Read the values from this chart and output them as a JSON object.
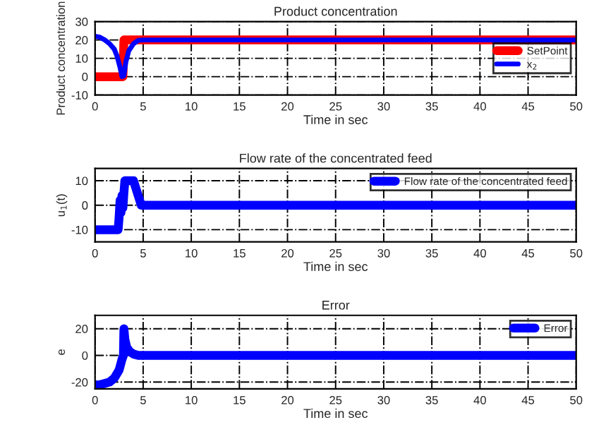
{
  "chart_data": [
    {
      "type": "line",
      "title": "Product concentration",
      "xlabel": "Time in sec",
      "ylabel": "Product concentration",
      "xlim": [
        0,
        50
      ],
      "xticks": [
        0,
        5,
        10,
        15,
        20,
        25,
        30,
        35,
        40,
        45,
        50
      ],
      "ylim": [
        -10,
        30
      ],
      "yticks": [
        -10,
        0,
        10,
        20,
        30
      ],
      "grid": true,
      "legend": "right",
      "line_style": "solid",
      "series": [
        {
          "name": "SetPoint",
          "color": "#ff0000",
          "x": [
            0,
            2.9,
            3.0,
            50
          ],
          "values": [
            0,
            0,
            20,
            20
          ]
        },
        {
          "name": "x$_{2}$",
          "color": "#0000ff",
          "x": [
            0,
            0.5,
            1,
            1.5,
            2,
            2.3,
            2.6,
            2.8,
            3.0,
            3.2,
            3.5,
            4,
            4.5,
            5,
            50
          ],
          "values": [
            22,
            21.5,
            20,
            18,
            15,
            11,
            5,
            0,
            0.5,
            8,
            14,
            18,
            19.8,
            20,
            20
          ]
        }
      ]
    },
    {
      "type": "line",
      "title": "Flow rate of the concentrated feed",
      "xlabel": "Time in sec",
      "ylabel": "u$_{1}$(t)",
      "xlim": [
        0,
        50
      ],
      "xticks": [
        0,
        5,
        10,
        15,
        20,
        25,
        30,
        35,
        40,
        45,
        50
      ],
      "ylim": [
        -15,
        15
      ],
      "yticks": [
        -10,
        0,
        10
      ],
      "grid": true,
      "legend": "top right",
      "line_style": "solid",
      "series": [
        {
          "name": "Flow rate of the concentrated feed",
          "color": "#0000ff",
          "x": [
            0,
            2.4,
            2.5,
            2.6,
            2.7,
            2.8,
            2.9,
            3.0,
            3.1,
            4.0,
            4.8,
            5,
            50
          ],
          "values": [
            -10,
            -10,
            -5,
            2,
            -3,
            4,
            -1,
            5,
            10,
            10,
            0,
            0,
            0
          ]
        }
      ]
    },
    {
      "type": "line",
      "title": "Error",
      "xlabel": "Time in sec",
      "ylabel": "e",
      "xlim": [
        0,
        50
      ],
      "xticks": [
        0,
        5,
        10,
        15,
        20,
        25,
        30,
        35,
        40,
        45,
        50
      ],
      "ylim": [
        -25,
        30
      ],
      "yticks": [
        -20,
        0,
        20
      ],
      "grid": true,
      "legend": "top right",
      "line_style": "solid",
      "series": [
        {
          "name": "Error",
          "color": "#0000ff",
          "x": [
            0,
            0.5,
            1,
            1.5,
            2,
            2.5,
            2.8,
            2.95,
            3.0,
            3.1,
            3.3,
            3.6,
            4,
            4.5,
            5,
            50
          ],
          "values": [
            -22,
            -22,
            -21,
            -20,
            -17,
            -11,
            -3,
            0,
            20,
            12,
            6,
            3,
            1,
            0,
            0,
            0
          ]
        }
      ]
    }
  ]
}
